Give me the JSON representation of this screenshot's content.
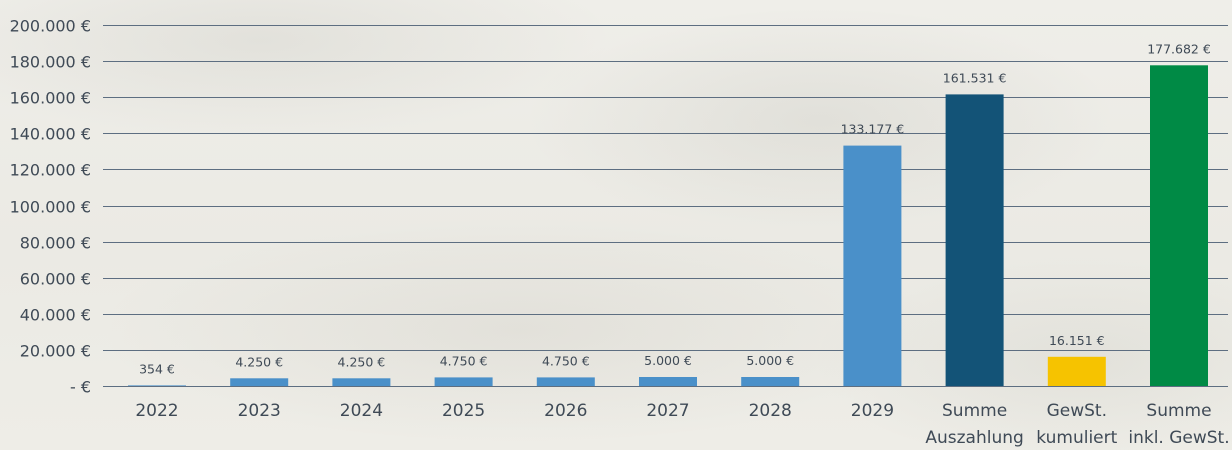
{
  "chart_data": {
    "type": "bar",
    "categories": [
      [
        "2022"
      ],
      [
        "2023"
      ],
      [
        "2024"
      ],
      [
        "2025"
      ],
      [
        "2026"
      ],
      [
        "2027"
      ],
      [
        "2028"
      ],
      [
        "2029"
      ],
      [
        "Summe",
        "Auszahlung"
      ],
      [
        "GewSt.",
        "kumuliert"
      ],
      [
        "Summe",
        "inkl. GewSt."
      ]
    ],
    "values": [
      354,
      4250,
      4250,
      4750,
      4750,
      5000,
      5000,
      133177,
      161531,
      16151,
      177682
    ],
    "data_labels": [
      "354 €",
      "4.250 €",
      "4.250 €",
      "4.750 €",
      "4.750 €",
      "5.000 €",
      "5.000 €",
      "133.177 €",
      "161.531 €",
      "16.151 €",
      "177.682 €"
    ],
    "bar_colors": [
      "#4a90c9",
      "#4a90c9",
      "#4a90c9",
      "#4a90c9",
      "#4a90c9",
      "#4a90c9",
      "#4a90c9",
      "#4a90c9",
      "#135377",
      "#f6c300",
      "#008a45"
    ],
    "yticks": [
      0,
      20000,
      40000,
      60000,
      80000,
      100000,
      120000,
      140000,
      160000,
      180000,
      200000
    ],
    "ytick_labels": [
      "- €",
      "20.000 €",
      "40.000 €",
      "60.000 €",
      "80.000 €",
      "100.000 €",
      "120.000 €",
      "140.000 €",
      "160.000 €",
      "180.000 €",
      "200.000 €"
    ],
    "ylim": [
      0,
      200000
    ],
    "grid": true,
    "title": "",
    "xlabel": "",
    "ylabel": ""
  }
}
